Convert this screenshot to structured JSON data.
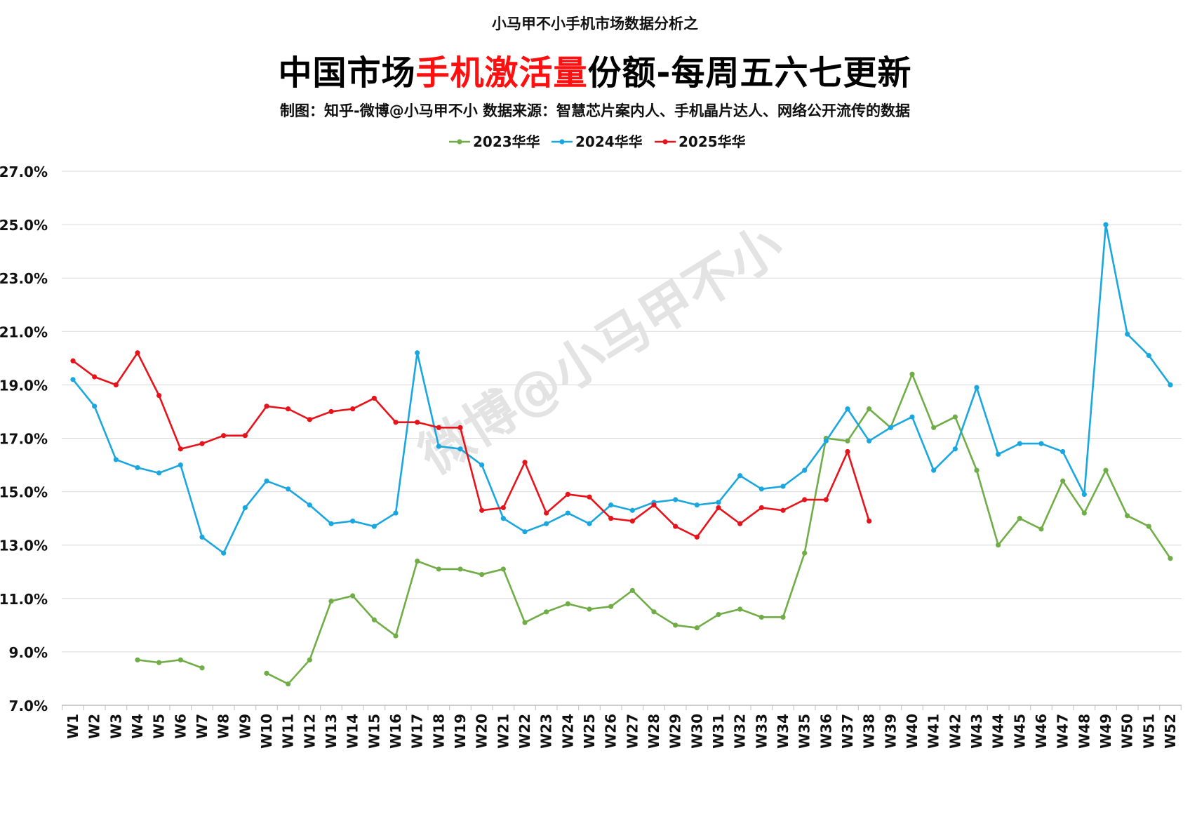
{
  "header": {
    "top_line": "小马甲不小手机市场数据分析之",
    "title_part1": "中国市场",
    "title_highlight": "手机激活量",
    "title_part2": "份额-每周五六七更新",
    "credit": "制图：知乎-微博@小马甲不小  数据来源：智慧芯片案内人、手机晶片达人、网络公开流传的数据"
  },
  "watermark": "微博@小马甲不小",
  "colors": {
    "series_2023": "#70ad47",
    "series_2024": "#1aa7e0",
    "series_2025": "#e8131a",
    "title_highlight": "#ff1010",
    "grid": "#d9d9d9"
  },
  "chart_data": {
    "type": "line",
    "title": "中国市场手机激活量份额-每周五六七更新",
    "xlabel": "",
    "ylabel": "",
    "ylim": [
      7.0,
      27.0
    ],
    "y_ticks": [
      "7.0%",
      "9.0%",
      "11.0%",
      "13.0%",
      "15.0%",
      "17.0%",
      "19.0%",
      "21.0%",
      "23.0%",
      "25.0%",
      "27.0%"
    ],
    "y_tick_values": [
      7,
      9,
      11,
      13,
      15,
      17,
      19,
      21,
      23,
      25,
      27
    ],
    "grid": true,
    "legend_position": "top-center",
    "categories": [
      "W1",
      "W2",
      "W3",
      "W4",
      "W5",
      "W6",
      "W7",
      "W8",
      "W9",
      "W10",
      "W11",
      "W12",
      "W13",
      "W14",
      "W15",
      "W16",
      "W17",
      "W18",
      "W19",
      "W20",
      "W21",
      "W22",
      "W23",
      "W24",
      "W25",
      "W26",
      "W27",
      "W28",
      "W29",
      "W30",
      "W31",
      "W32",
      "W33",
      "W34",
      "W35",
      "W36",
      "W37",
      "W38",
      "W39",
      "W40",
      "W41",
      "W42",
      "W43",
      "W44",
      "W45",
      "W46",
      "W47",
      "W48",
      "W49",
      "W50",
      "W51",
      "W52"
    ],
    "series": [
      {
        "name": "2023华华",
        "color": "#70ad47",
        "values": [
          null,
          null,
          null,
          8.7,
          8.6,
          8.7,
          8.4,
          null,
          null,
          8.2,
          7.8,
          8.7,
          10.9,
          11.1,
          10.2,
          9.6,
          12.4,
          12.1,
          12.1,
          11.9,
          12.1,
          10.1,
          10.5,
          10.8,
          10.6,
          10.7,
          11.3,
          10.5,
          10.0,
          9.9,
          10.4,
          10.6,
          10.3,
          10.3,
          12.7,
          17.0,
          16.9,
          18.1,
          17.4,
          19.4,
          17.4,
          17.8,
          15.8,
          13.0,
          14.0,
          13.6,
          15.4,
          14.2,
          15.8,
          14.1,
          13.7,
          12.5
        ]
      },
      {
        "name": "2024华华",
        "color": "#1aa7e0",
        "values": [
          19.2,
          18.2,
          16.2,
          15.9,
          15.7,
          16.0,
          13.3,
          12.7,
          14.4,
          15.4,
          15.1,
          14.5,
          13.8,
          13.9,
          13.7,
          14.2,
          20.2,
          16.7,
          16.6,
          16.0,
          14.0,
          13.5,
          13.8,
          14.2,
          13.8,
          14.5,
          14.3,
          14.6,
          14.7,
          14.5,
          14.6,
          15.6,
          15.1,
          15.2,
          15.8,
          16.9,
          18.1,
          16.9,
          17.4,
          17.8,
          15.8,
          16.6,
          18.9,
          16.4,
          16.8,
          16.8,
          16.5,
          14.9,
          25.0,
          20.9,
          20.1,
          19.0
        ]
      },
      {
        "name": "2025华华",
        "color": "#e8131a",
        "values": [
          19.9,
          19.3,
          19.0,
          20.2,
          18.6,
          16.6,
          16.8,
          17.1,
          17.1,
          18.2,
          18.1,
          17.7,
          18.0,
          18.1,
          18.5,
          17.6,
          17.6,
          17.4,
          17.4,
          14.3,
          14.4,
          16.1,
          14.2,
          14.9,
          14.8,
          14.0,
          13.9,
          14.5,
          13.7,
          13.3,
          14.4,
          13.8,
          14.4,
          14.3,
          14.7,
          14.7,
          16.5,
          13.9,
          null,
          null,
          null,
          null,
          null,
          null,
          null,
          null,
          null,
          null,
          null,
          null,
          null,
          null
        ]
      }
    ]
  }
}
